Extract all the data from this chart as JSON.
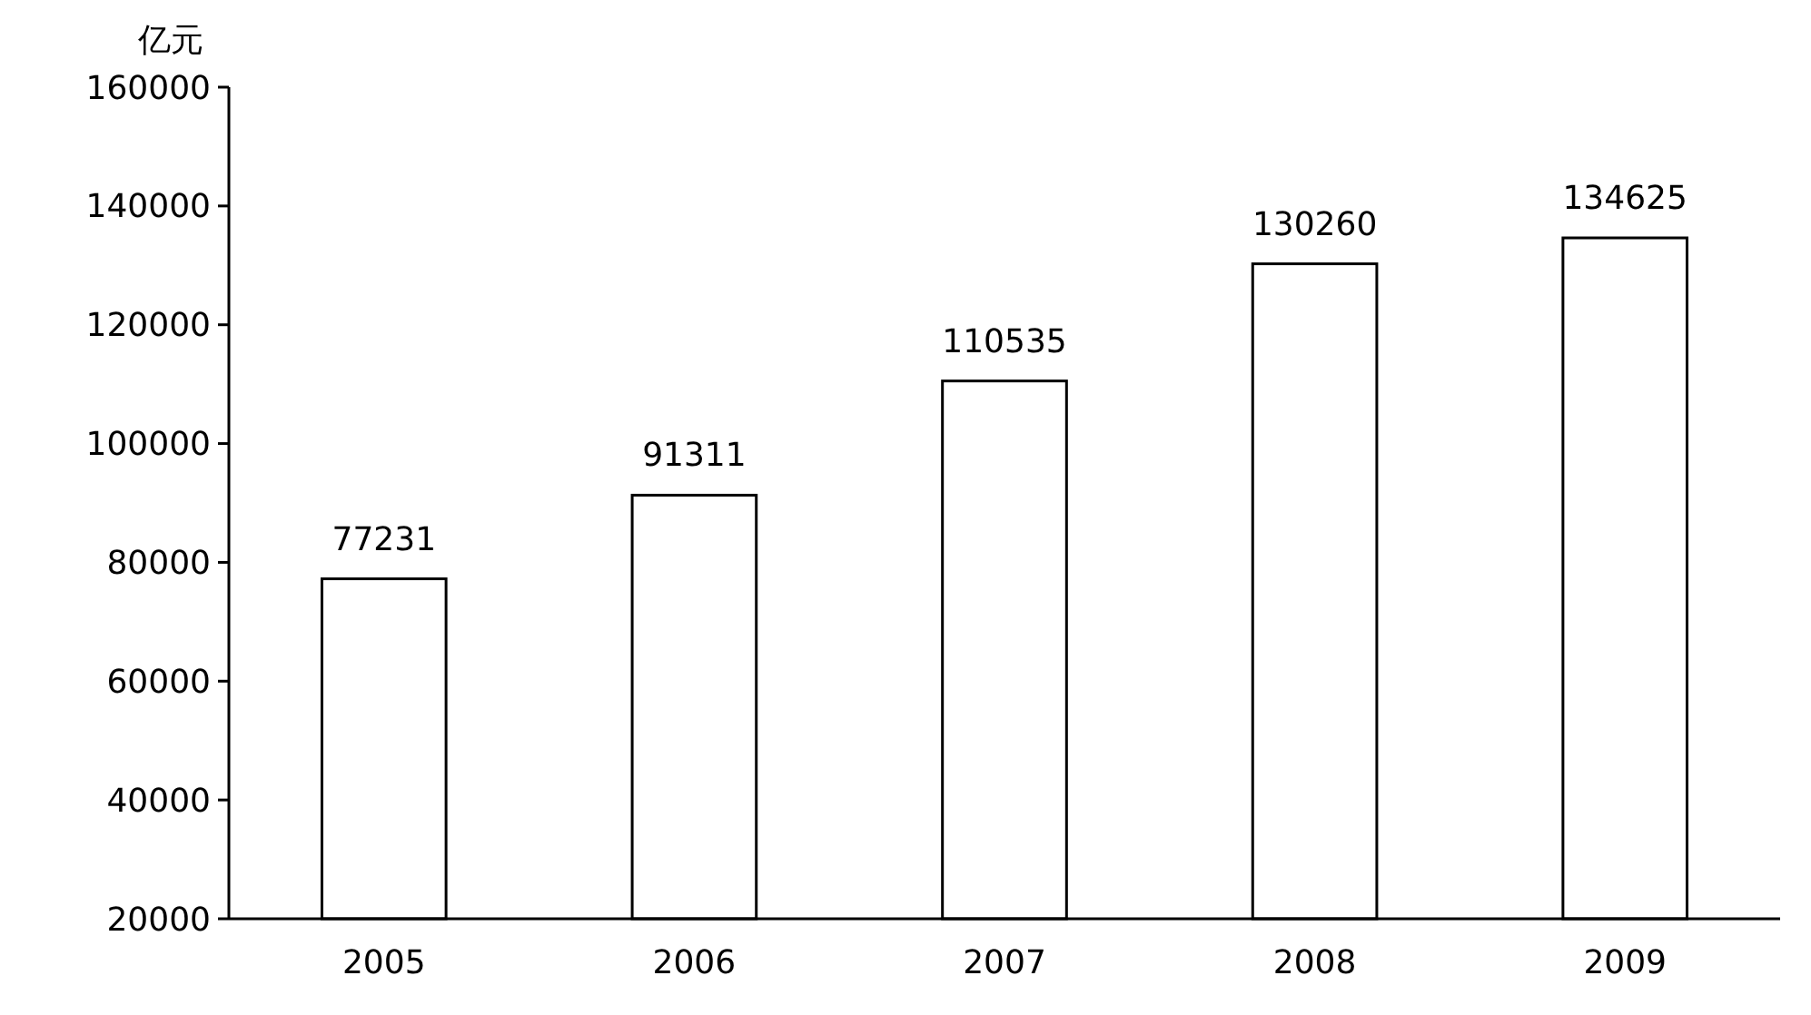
{
  "chart_data": {
    "type": "bar",
    "ylabel": "亿元",
    "categories": [
      "2005",
      "2006",
      "2007",
      "2008",
      "2009"
    ],
    "values": [
      77231,
      91311,
      110535,
      130260,
      134625
    ],
    "color": "#ffffff",
    "ylim": [
      20000,
      160000
    ],
    "yticks": [
      20000,
      40000,
      60000,
      80000,
      100000,
      120000,
      140000,
      160000
    ],
    "data_labels": true,
    "grid": false
  }
}
